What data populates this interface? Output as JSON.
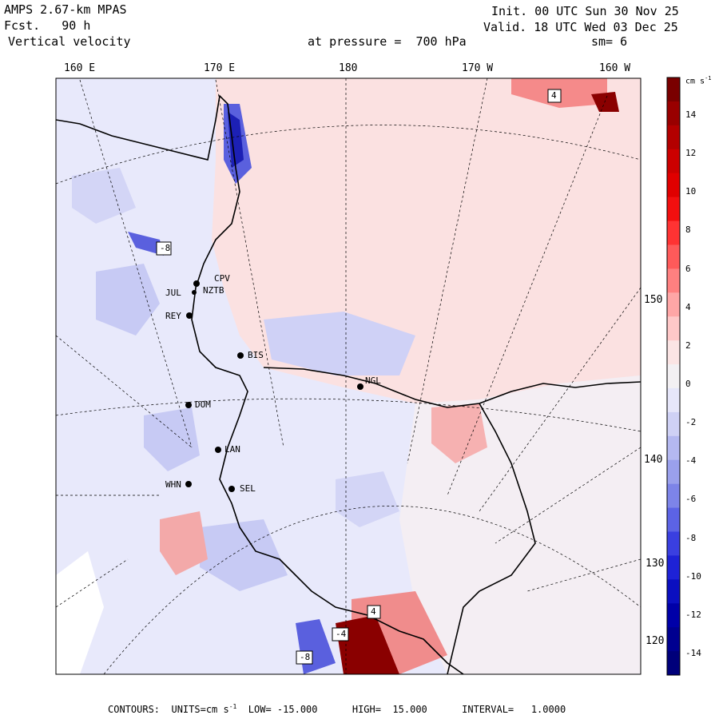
{
  "header": {
    "model": "AMPS 2.67-km MPAS",
    "forecast": "Fcst.   90 h",
    "field": "Vertical velocity",
    "init": "Init. 00 UTC Sun 30 Nov 25",
    "valid": "Valid. 18 UTC Wed 03 Dec 25",
    "pressure": "at pressure =  700 hPa",
    "smoothing": "sm= 6"
  },
  "map": {
    "lon_labels_top": [
      "160 E",
      "170 E",
      "180",
      "170 W",
      "160 W"
    ],
    "lon_labels_right": [
      "150 W",
      "140 W",
      "130 W",
      "120 W"
    ],
    "stations": [
      "CPV",
      "NZTB",
      "JUL",
      "REY",
      "BIS",
      "NGL",
      "DOM",
      "LAN",
      "WHN",
      "SEL"
    ],
    "extrema_labels": [
      "-8",
      "4",
      "-4",
      "4",
      "-8"
    ]
  },
  "colorbar": {
    "units_label": "cm s",
    "units_exp": "-1",
    "ticks": [
      "14",
      "12",
      "10",
      "8",
      "6",
      "4",
      "2",
      "0",
      "-2",
      "-4",
      "-6",
      "-8",
      "-10",
      "-12",
      "-14"
    ],
    "colors": [
      "#7a0000",
      "#990000",
      "#b30000",
      "#cc0000",
      "#e00000",
      "#f20f0f",
      "#ff3333",
      "#ff5a5a",
      "#ff8080",
      "#ffa6a6",
      "#ffc8c8",
      "#fbe4e4",
      "#f3f0f3",
      "#e6e6fa",
      "#cfd1f5",
      "#b4b8f0",
      "#9aa0ec",
      "#7d84e8",
      "#5c63e5",
      "#3a3fe0",
      "#1e22d6",
      "#0b0fc0",
      "#0000a8",
      "#000090",
      "#00007a"
    ]
  },
  "footer": {
    "text": "CONTOURS:  UNITS=cm s",
    "exp": "-1",
    "rest": "  LOW= -15.000      HIGH=  15.000      INTERVAL=   1.0000"
  }
}
